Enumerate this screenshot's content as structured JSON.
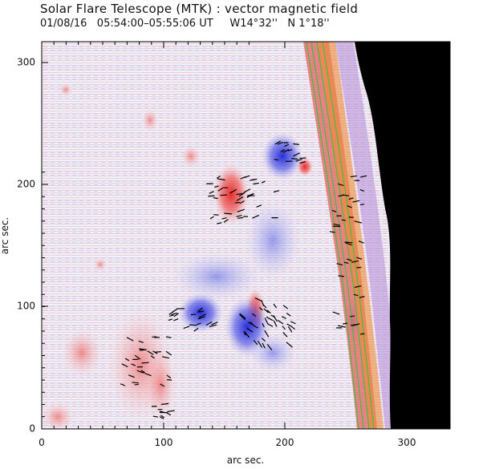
{
  "header": {
    "title": "Solar Flare Telescope (MTK) : vector magnetic field",
    "date": "01/08/16",
    "time_range": "05:54:00–05:55:06 UT",
    "longitude": "W14°32''",
    "latitude": "N 1°18''"
  },
  "axes": {
    "xlabel": "arc sec.",
    "ylabel": "arc sec.",
    "xlim": [
      0,
      340
    ],
    "ylim": [
      0,
      315
    ],
    "xticks": [
      "0",
      "100",
      "200",
      "300"
    ],
    "yticks": [
      "0",
      "100",
      "200",
      "300"
    ]
  },
  "colors": {
    "positive_polarity": "#e0282a",
    "negative_polarity": "#3a3fe0",
    "background_off_disk": "#000000",
    "contour_lines": "#22cc33",
    "arrows": "#000000"
  },
  "features": {
    "positive_regions": [
      "leading spot near (155, 200)",
      "plage 60-110 x, 0-100 y",
      "spot near (170, 95)"
    ],
    "negative_regions": [
      "spot near (170, 85)",
      "region near (200, 225)",
      "region near (120, 95)"
    ],
    "limb": "solar limb on right side beyond ~270 arc sec"
  }
}
